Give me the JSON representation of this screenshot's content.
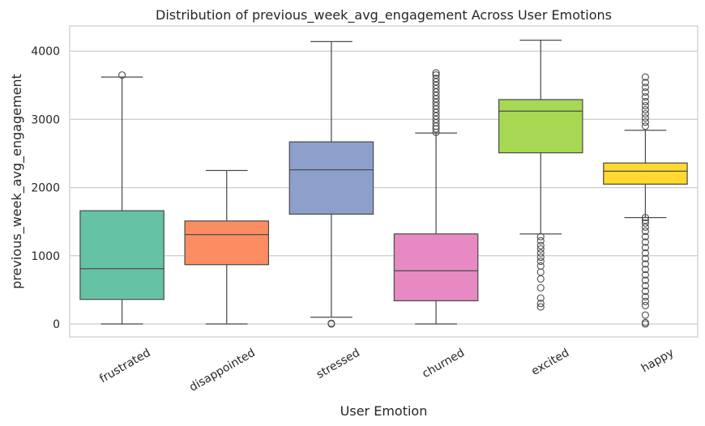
{
  "chart_data": {
    "type": "box",
    "title": "Distribution of previous_week_avg_engagement Across User Emotions",
    "xlabel": "User Emotion",
    "ylabel": "previous_week_avg_engagement",
    "ylim": [
      -190,
      4370
    ],
    "yticks": [
      0,
      1000,
      2000,
      3000,
      4000
    ],
    "grid": true,
    "categories": [
      "frustrated",
      "disappointed",
      "stressed",
      "churned",
      "excited",
      "happy"
    ],
    "colors": [
      "#66c2a5",
      "#fc8d62",
      "#8da0cb",
      "#e78ac3",
      "#a6d854",
      "#ffd92f"
    ],
    "boxes": [
      {
        "whisker_low": 0,
        "q1": 360,
        "median": 810,
        "q3": 1660,
        "whisker_high": 3620,
        "outliers": [
          3650
        ]
      },
      {
        "whisker_low": 0,
        "q1": 870,
        "median": 1310,
        "q3": 1510,
        "whisker_high": 2250,
        "outliers": []
      },
      {
        "whisker_low": 100,
        "q1": 1610,
        "median": 2260,
        "q3": 2670,
        "whisker_high": 4140,
        "outliers": [
          0,
          10
        ]
      },
      {
        "whisker_low": 0,
        "q1": 340,
        "median": 780,
        "q3": 1320,
        "whisker_high": 2800,
        "outliers": [
          2810,
          2860,
          2900,
          2950,
          3000,
          3050,
          3100,
          3150,
          3200,
          3250,
          3300,
          3350,
          3400,
          3450,
          3500,
          3550,
          3600,
          3650,
          3680
        ]
      },
      {
        "whisker_low": 1320,
        "q1": 2510,
        "median": 3120,
        "q3": 3290,
        "whisker_high": 4160,
        "outliers": [
          250,
          300,
          380,
          530,
          660,
          760,
          850,
          920,
          980,
          1040,
          1100,
          1150,
          1220,
          1280
        ]
      },
      {
        "whisker_low": 1560,
        "q1": 2050,
        "median": 2240,
        "q3": 2360,
        "whisker_high": 2840,
        "outliers": [
          0,
          20,
          130,
          270,
          330,
          400,
          480,
          560,
          640,
          720,
          800,
          880,
          960,
          1040,
          1120,
          1200,
          1280,
          1360,
          1420,
          1480,
          1520,
          1560,
          2900,
          2960,
          3020,
          3080,
          3140,
          3200,
          3260,
          3330,
          3400,
          3470,
          3540,
          3620
        ]
      }
    ]
  }
}
